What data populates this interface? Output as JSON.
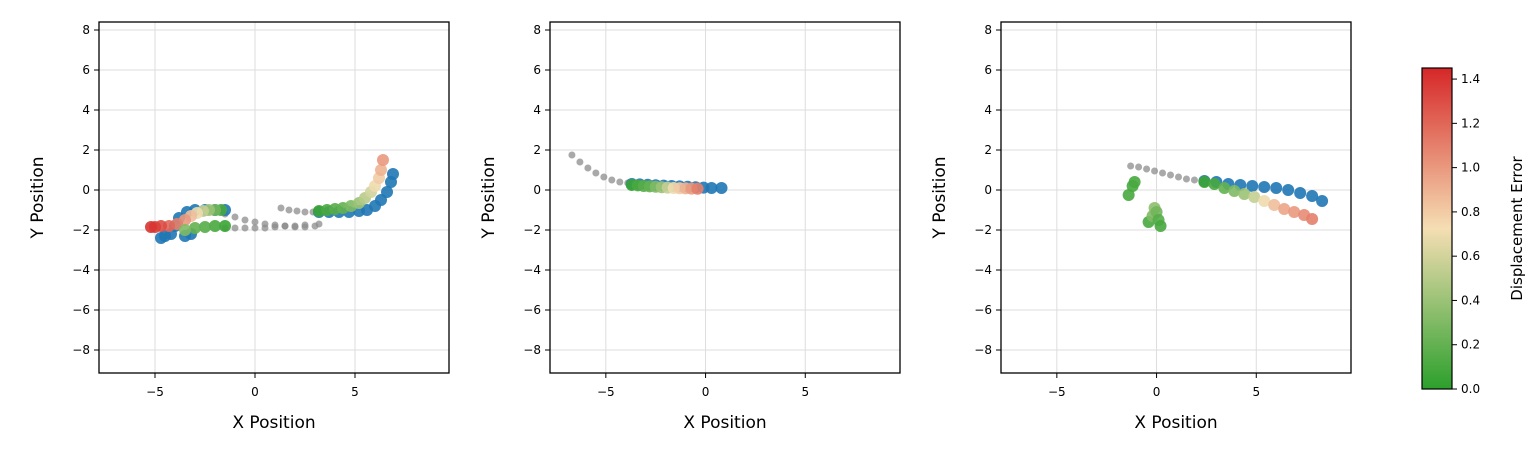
{
  "chart_data": [
    {
      "type": "scatter",
      "xlabel": "X Position",
      "ylabel": "Y Position",
      "xlim": [
        -7.8,
        9.7
      ],
      "ylim": [
        -9.15,
        8.4
      ],
      "grid": true,
      "xticks": [
        {
          "value": -5,
          "label": "−5"
        },
        0,
        5
      ],
      "yticks": [
        {
          "value": -8,
          "label": "−8"
        },
        {
          "value": -6,
          "label": "−6"
        },
        {
          "value": -4,
          "label": "−4"
        },
        {
          "value": -2,
          "label": "−2"
        },
        0,
        2,
        4,
        6,
        8
      ],
      "history": [
        {
          "color": "#8c8c8c",
          "x": [
            -2.5,
            -2,
            -1.5,
            -1,
            -0.5,
            0,
            0.5,
            1,
            1.5,
            2,
            2.5,
            3
          ],
          "values": [
            -1.0,
            -1.1,
            -1.2,
            -1.35,
            -1.5,
            -1.6,
            -1.7,
            -1.75,
            -1.8,
            -1.85,
            -1.85,
            -1.8
          ]
        },
        {
          "color": "#8c8c8c",
          "x": [
            -1.5,
            -1,
            -0.5,
            0,
            0.5,
            1,
            1.5,
            2,
            2.5,
            3.2
          ],
          "values": [
            -1.9,
            -1.9,
            -1.9,
            -1.9,
            -1.9,
            -1.85,
            -1.8,
            -1.8,
            -1.75,
            -1.7
          ]
        },
        {
          "color": "#8c8c8c",
          "x": [
            1.3,
            1.7,
            2.1,
            2.5,
            2.9
          ],
          "values": [
            -0.9,
            -1.0,
            -1.05,
            -1.1,
            -1.1
          ]
        }
      ],
      "ground_truth": [
        {
          "color": "#1f77b4",
          "x": [
            3.2,
            3.7,
            4.2,
            4.7,
            5.2,
            5.6,
            6.0,
            6.3,
            6.6,
            6.8,
            6.9
          ],
          "values": [
            -1.1,
            -1.1,
            -1.1,
            -1.1,
            -1.05,
            -1.0,
            -0.8,
            -0.5,
            -0.1,
            0.4,
            0.8
          ]
        },
        {
          "color": "#1f77b4",
          "x": [
            -1.5,
            -2,
            -2.5,
            -3,
            -3.4,
            -3.8,
            -4,
            -4.2,
            -4.5,
            -4.7,
            -3.5,
            -3.2
          ],
          "values": [
            -1,
            -1,
            -1,
            -1,
            -1.1,
            -1.4,
            -1.8,
            -2.2,
            -2.3,
            -2.4,
            -2.3,
            -2.2
          ]
        }
      ],
      "predictions": [
        {
          "x": [
            3.2,
            3.6,
            4.0,
            4.4,
            4.8,
            5.2,
            5.5,
            5.8,
            6.0,
            6.2,
            6.3,
            6.4
          ],
          "values": [
            -1.05,
            -1.0,
            -0.95,
            -0.9,
            -0.8,
            -0.65,
            -0.4,
            -0.1,
            0.2,
            0.6,
            1.0,
            1.5
          ],
          "color_values": [
            0.05,
            0.1,
            0.15,
            0.2,
            0.3,
            0.4,
            0.5,
            0.6,
            0.7,
            0.8,
            0.9,
            1.0
          ]
        },
        {
          "x": [
            -1.7,
            -2,
            -2.3,
            -2.6,
            -2.9,
            -3.2,
            -3.5,
            -3.9,
            -4.3,
            -4.7,
            -5.0,
            -5.2
          ],
          "values": [
            -1.0,
            -1.0,
            -1.0,
            -1.05,
            -1.15,
            -1.3,
            -1.5,
            -1.7,
            -1.8,
            -1.8,
            -1.85,
            -1.85
          ],
          "color_values": [
            0.1,
            0.25,
            0.4,
            0.55,
            0.7,
            0.85,
            1.0,
            1.1,
            1.2,
            1.3,
            1.35,
            1.4
          ]
        },
        {
          "x": [
            -1.5,
            -2,
            -2.5,
            -3,
            -3.5
          ],
          "values": [
            -1.8,
            -1.8,
            -1.85,
            -1.9,
            -2.0
          ],
          "color_values": [
            0.05,
            0.1,
            0.15,
            0.2,
            0.3
          ]
        }
      ]
    },
    {
      "type": "scatter",
      "xlabel": "X Position",
      "ylabel": "Y Position",
      "xlim": [
        -7.8,
        9.75
      ],
      "ylim": [
        -9.15,
        8.4
      ],
      "grid": true,
      "xticks": [
        {
          "value": -5,
          "label": "−5"
        },
        0,
        5
      ],
      "yticks": [
        {
          "value": -8,
          "label": "−8"
        },
        {
          "value": -6,
          "label": "−6"
        },
        {
          "value": -4,
          "label": "−4"
        },
        {
          "value": -2,
          "label": "−2"
        },
        0,
        2,
        4,
        6,
        8
      ],
      "history": [
        {
          "color": "#8c8c8c",
          "x": [
            -6.7,
            -6.3,
            -5.9,
            -5.5,
            -5.1,
            -4.7,
            -4.3,
            -3.9
          ],
          "values": [
            1.75,
            1.4,
            1.1,
            0.85,
            0.65,
            0.5,
            0.4,
            0.35
          ]
        }
      ],
      "ground_truth": [
        {
          "color": "#1f77b4",
          "x": [
            -3.7,
            -3.3,
            -2.9,
            -2.5,
            -2.1,
            -1.7,
            -1.3,
            -0.9,
            -0.5,
            -0.1,
            0.3,
            0.8
          ],
          "values": [
            0.3,
            0.28,
            0.26,
            0.24,
            0.22,
            0.2,
            0.18,
            0.16,
            0.14,
            0.12,
            0.1,
            0.1
          ]
        }
      ],
      "predictions": [
        {
          "x": [
            -3.7,
            -3.4,
            -3.1,
            -2.8,
            -2.5,
            -2.2,
            -1.9,
            -1.6,
            -1.3,
            -1.0,
            -0.7,
            -0.4
          ],
          "values": [
            0.25,
            0.23,
            0.2,
            0.18,
            0.16,
            0.14,
            0.12,
            0.1,
            0.09,
            0.08,
            0.07,
            0.06
          ],
          "color_values": [
            0.05,
            0.1,
            0.15,
            0.2,
            0.3,
            0.4,
            0.55,
            0.7,
            0.8,
            0.9,
            1.0,
            1.1
          ]
        }
      ]
    },
    {
      "type": "scatter",
      "xlabel": "X Position",
      "ylabel": "Y Position",
      "xlim": [
        -7.8,
        9.75
      ],
      "ylim": [
        -9.15,
        8.4
      ],
      "grid": true,
      "xticks": [
        {
          "value": -5,
          "label": "−5"
        },
        0,
        5
      ],
      "yticks": [
        {
          "value": -8,
          "label": "−8"
        },
        {
          "value": -6,
          "label": "−6"
        },
        {
          "value": -4,
          "label": "−4"
        },
        {
          "value": -2,
          "label": "−2"
        },
        0,
        2,
        4,
        6,
        8
      ],
      "history": [
        {
          "color": "#8c8c8c",
          "x": [
            -1.3,
            -0.9,
            -0.5,
            -0.1,
            0.3,
            0.7,
            1.1,
            1.5,
            1.9
          ],
          "values": [
            1.2,
            1.15,
            1.05,
            0.95,
            0.85,
            0.75,
            0.65,
            0.55,
            0.5
          ]
        }
      ],
      "ground_truth": [
        {
          "color": "#1f77b4",
          "x": [
            2.4,
            3.0,
            3.6,
            4.2,
            4.8,
            5.4,
            6.0,
            6.6,
            7.2,
            7.8,
            8.3
          ],
          "values": [
            0.45,
            0.4,
            0.3,
            0.25,
            0.2,
            0.15,
            0.1,
            0.0,
            -0.15,
            -0.3,
            -0.55
          ]
        }
      ],
      "predictions": [
        {
          "x": [
            2.4,
            2.9,
            3.4,
            3.9,
            4.4,
            4.9,
            5.4,
            5.9,
            6.4,
            6.9,
            7.4,
            7.8
          ],
          "values": [
            0.4,
            0.3,
            0.1,
            -0.05,
            -0.2,
            -0.35,
            -0.55,
            -0.75,
            -0.95,
            -1.1,
            -1.25,
            -1.45
          ],
          "color_values": [
            0.05,
            0.1,
            0.2,
            0.3,
            0.4,
            0.55,
            0.7,
            0.85,
            0.95,
            1.0,
            1.05,
            1.1
          ]
        },
        {
          "x": [
            -1.4,
            -1.2,
            -1.1,
            -0.4,
            -0.2,
            -0.1,
            0,
            0.1,
            0.2
          ],
          "values": [
            -0.25,
            0.2,
            0.4,
            -1.6,
            -1.3,
            -0.9,
            -1.1,
            -1.5,
            -1.8
          ],
          "color_values": [
            0.1,
            0.1,
            0.1,
            0.1,
            0.3,
            0.35,
            0.25,
            0.15,
            0.1
          ]
        }
      ]
    }
  ],
  "colorbar": {
    "label": "Displacement Error",
    "clim": [
      0,
      1.45
    ],
    "colormap": [
      "#2ca02c",
      "#f5deb3",
      "#d62728"
    ],
    "ticks": [
      {
        "value": 0,
        "label": "0.0"
      },
      {
        "value": 0.2,
        "label": "0.2"
      },
      {
        "value": 0.4,
        "label": "0.4"
      },
      {
        "value": 0.6,
        "label": "0.6"
      },
      {
        "value": 0.8,
        "label": "0.8"
      },
      {
        "value": 1,
        "label": "1.0"
      },
      {
        "value": 1.2,
        "label": "1.2"
      },
      {
        "value": 1.4,
        "label": "1.4"
      }
    ]
  }
}
